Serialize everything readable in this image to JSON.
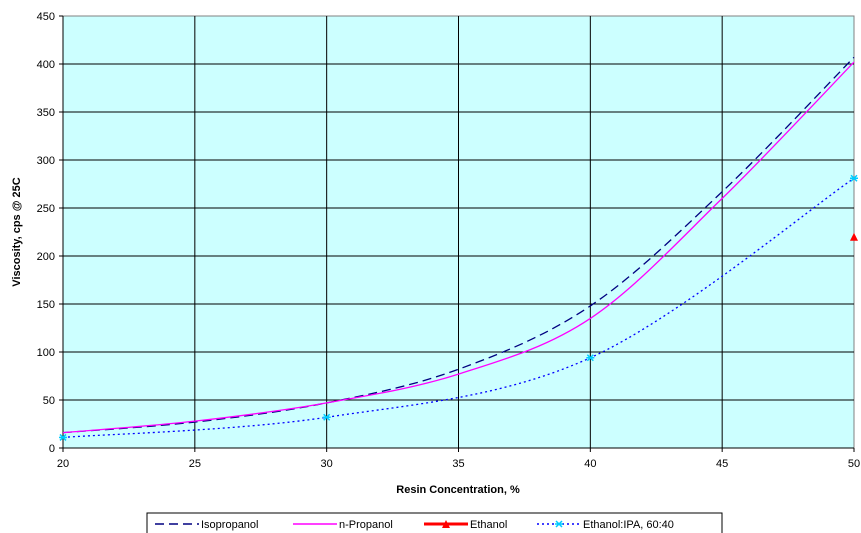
{
  "chart_data": {
    "type": "line",
    "xlabel": "Resin Concentration, %",
    "ylabel": "Viscosity, cps @ 25C",
    "xlim": [
      20,
      50
    ],
    "ylim": [
      0,
      450
    ],
    "x_ticks": [
      20,
      25,
      30,
      35,
      40,
      45,
      50
    ],
    "y_ticks": [
      0,
      50,
      100,
      150,
      200,
      250,
      300,
      350,
      400,
      450
    ],
    "grid": true,
    "plot_background": "#ccffff",
    "legend_position": "bottom",
    "series": [
      {
        "name": "Isopropanol",
        "color": "#000080",
        "style": "dashed",
        "marker": "none",
        "points": [
          [
            20,
            16
          ],
          [
            25,
            27
          ],
          [
            30,
            47
          ],
          [
            35,
            82
          ],
          [
            40,
            148
          ],
          [
            45,
            267
          ],
          [
            50,
            407
          ]
        ]
      },
      {
        "name": "n-Propanol",
        "color": "#ff00ff",
        "style": "solid",
        "marker": "none",
        "points": [
          [
            20,
            16
          ],
          [
            25,
            28
          ],
          [
            30,
            47
          ],
          [
            35,
            77
          ],
          [
            40,
            135
          ],
          [
            45,
            260
          ],
          [
            50,
            402
          ]
        ]
      },
      {
        "name": "Ethanol",
        "color": "#ff0000",
        "style": "solid",
        "marker": "triangle",
        "points": [
          [
            50,
            220
          ]
        ]
      },
      {
        "name": "Ethanol:IPA, 60:40",
        "color": "#0000ff",
        "marker_color": "#00ccff",
        "style": "dotted",
        "marker": "star",
        "points": [
          [
            20,
            11
          ],
          [
            30,
            32
          ],
          [
            40,
            94
          ],
          [
            50,
            281
          ]
        ]
      }
    ]
  }
}
